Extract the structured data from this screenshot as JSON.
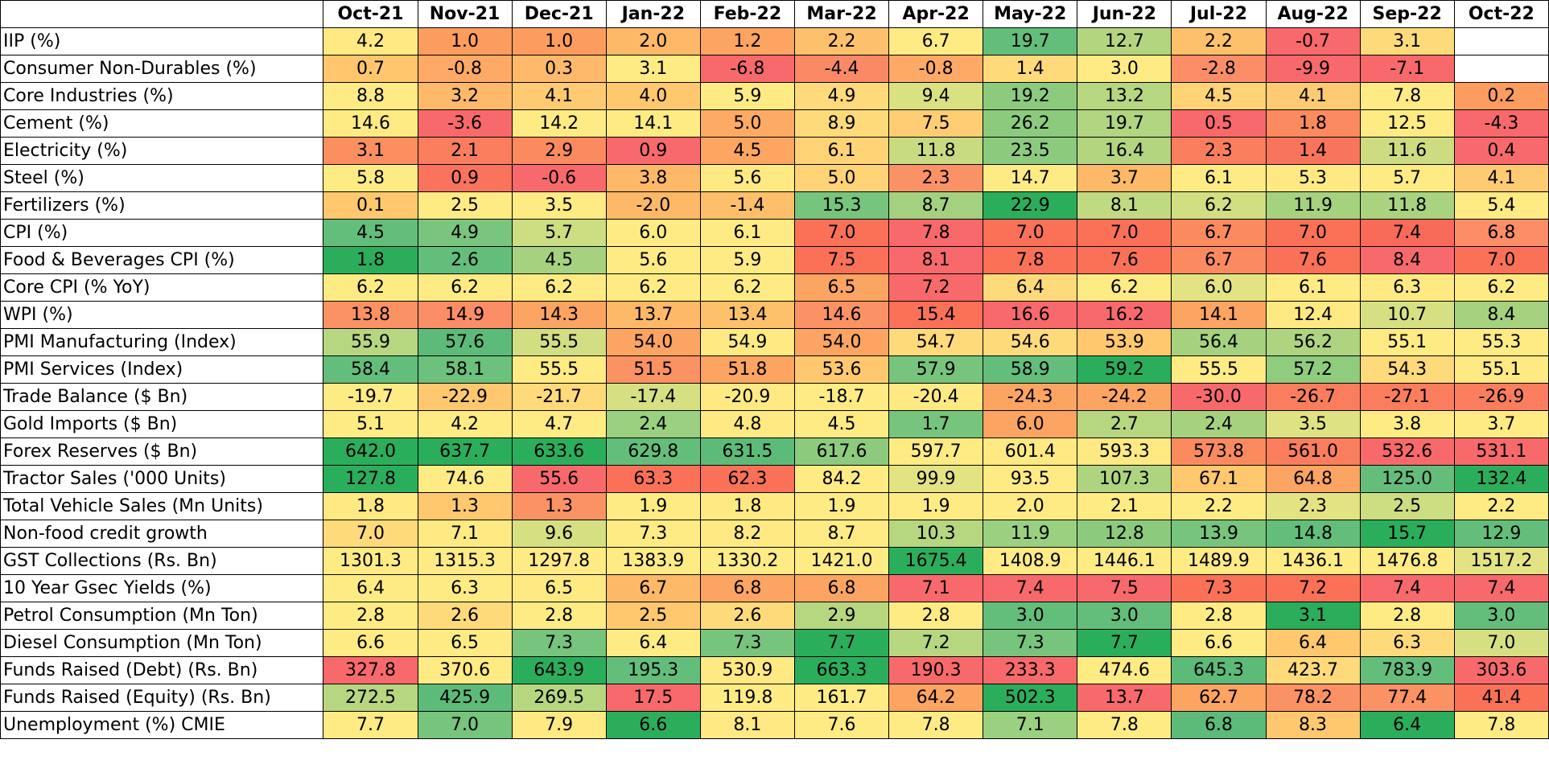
{
  "chart_data": {
    "type": "table",
    "title": "",
    "columns": [
      "Oct-21",
      "Nov-21",
      "Dec-21",
      "Jan-22",
      "Feb-22",
      "Mar-22",
      "Apr-22",
      "May-22",
      "Jun-22",
      "Jul-22",
      "Aug-22",
      "Sep-22",
      "Oct-22"
    ],
    "rows": [
      {
        "label": "IIP (%)",
        "values": [
          "4.2",
          "1.0",
          "1.0",
          "2.0",
          "1.2",
          "2.2",
          "6.7",
          "19.7",
          "12.7",
          "2.2",
          "-0.7",
          "3.1",
          ""
        ]
      },
      {
        "label": "Consumer Non-Durables (%)",
        "values": [
          "0.7",
          "-0.8",
          "0.3",
          "3.1",
          "-6.8",
          "-4.4",
          "-0.8",
          "1.4",
          "3.0",
          "-2.8",
          "-9.9",
          "-7.1",
          ""
        ]
      },
      {
        "label": "Core Industries (%)",
        "values": [
          "8.8",
          "3.2",
          "4.1",
          "4.0",
          "5.9",
          "4.9",
          "9.4",
          "19.2",
          "13.2",
          "4.5",
          "4.1",
          "7.8",
          "0.2"
        ]
      },
      {
        "label": "Cement (%)",
        "values": [
          "14.6",
          "-3.6",
          "14.2",
          "14.1",
          "5.0",
          "8.9",
          "7.5",
          "26.2",
          "19.7",
          "0.5",
          "1.8",
          "12.5",
          "-4.3"
        ]
      },
      {
        "label": "Electricity (%)",
        "values": [
          "3.1",
          "2.1",
          "2.9",
          "0.9",
          "4.5",
          "6.1",
          "11.8",
          "23.5",
          "16.4",
          "2.3",
          "1.4",
          "11.6",
          "0.4"
        ]
      },
      {
        "label": "Steel (%)",
        "values": [
          "5.8",
          "0.9",
          "-0.6",
          "3.8",
          "5.6",
          "5.0",
          "2.3",
          "14.7",
          "3.7",
          "6.1",
          "5.3",
          "5.7",
          "4.1"
        ]
      },
      {
        "label": "Fertilizers (%)",
        "values": [
          "0.1",
          "2.5",
          "3.5",
          "-2.0",
          "-1.4",
          "15.3",
          "8.7",
          "22.9",
          "8.1",
          "6.2",
          "11.9",
          "11.8",
          "5.4"
        ]
      },
      {
        "label": "CPI (%)",
        "values": [
          "4.5",
          "4.9",
          "5.7",
          "6.0",
          "6.1",
          "7.0",
          "7.8",
          "7.0",
          "7.0",
          "6.7",
          "7.0",
          "7.4",
          "6.8"
        ]
      },
      {
        "label": "Food & Beverages CPI (%)",
        "values": [
          "1.8",
          "2.6",
          "4.5",
          "5.6",
          "5.9",
          "7.5",
          "8.1",
          "7.8",
          "7.6",
          "6.7",
          "7.6",
          "8.4",
          "7.0"
        ]
      },
      {
        "label": "Core CPI (% YoY)",
        "values": [
          "6.2",
          "6.2",
          "6.2",
          "6.2",
          "6.2",
          "6.5",
          "7.2",
          "6.4",
          "6.2",
          "6.0",
          "6.1",
          "6.3",
          "6.2"
        ]
      },
      {
        "label": "WPI (%)",
        "values": [
          "13.8",
          "14.9",
          "14.3",
          "13.7",
          "13.4",
          "14.6",
          "15.4",
          "16.6",
          "16.2",
          "14.1",
          "12.4",
          "10.7",
          "8.4"
        ]
      },
      {
        "label": "PMI Manufacturing (Index)",
        "values": [
          "55.9",
          "57.6",
          "55.5",
          "54.0",
          "54.9",
          "54.0",
          "54.7",
          "54.6",
          "53.9",
          "56.4",
          "56.2",
          "55.1",
          "55.3"
        ]
      },
      {
        "label": "PMI Services (Index)",
        "values": [
          "58.4",
          "58.1",
          "55.5",
          "51.5",
          "51.8",
          "53.6",
          "57.9",
          "58.9",
          "59.2",
          "55.5",
          "57.2",
          "54.3",
          "55.1"
        ]
      },
      {
        "label": "Trade Balance ($ Bn)",
        "values": [
          "-19.7",
          "-22.9",
          "-21.7",
          "-17.4",
          "-20.9",
          "-18.7",
          "-20.4",
          "-24.3",
          "-24.2",
          "-30.0",
          "-26.7",
          "-27.1",
          "-26.9"
        ]
      },
      {
        "label": "Gold Imports ($ Bn)",
        "values": [
          "5.1",
          "4.2",
          "4.7",
          "2.4",
          "4.8",
          "4.5",
          "1.7",
          "6.0",
          "2.7",
          "2.4",
          "3.5",
          "3.8",
          "3.7"
        ]
      },
      {
        "label": "Forex Reserves ($ Bn)",
        "values": [
          "642.0",
          "637.7",
          "633.6",
          "629.8",
          "631.5",
          "617.6",
          "597.7",
          "601.4",
          "593.3",
          "573.8",
          "561.0",
          "532.6",
          "531.1"
        ]
      },
      {
        "label": "Tractor Sales ('000 Units)",
        "values": [
          "127.8",
          "74.6",
          "55.6",
          "63.3",
          "62.3",
          "84.2",
          "99.9",
          "93.5",
          "107.3",
          "67.1",
          "64.8",
          "125.0",
          "132.4"
        ]
      },
      {
        "label": "Total Vehicle Sales (Mn Units)",
        "values": [
          "1.8",
          "1.3",
          "1.3",
          "1.9",
          "1.8",
          "1.9",
          "1.9",
          "2.0",
          "2.1",
          "2.2",
          "2.3",
          "2.5",
          "2.2"
        ]
      },
      {
        "label": "Non-food credit growth",
        "values": [
          "7.0",
          "7.1",
          "9.6",
          "7.3",
          "8.2",
          "8.7",
          "10.3",
          "11.9",
          "12.8",
          "13.9",
          "14.8",
          "15.7",
          "12.9"
        ]
      },
      {
        "label": "GST Collections (Rs. Bn)",
        "values": [
          "1301.3",
          "1315.3",
          "1297.8",
          "1383.9",
          "1330.2",
          "1421.0",
          "1675.4",
          "1408.9",
          "1446.1",
          "1489.9",
          "1436.1",
          "1476.8",
          "1517.2"
        ]
      },
      {
        "label": "10 Year Gsec Yields (%)",
        "values": [
          "6.4",
          "6.3",
          "6.5",
          "6.7",
          "6.8",
          "6.8",
          "7.1",
          "7.4",
          "7.5",
          "7.3",
          "7.2",
          "7.4",
          "7.4"
        ]
      },
      {
        "label": "Petrol Consumption (Mn Ton)",
        "values": [
          "2.8",
          "2.6",
          "2.8",
          "2.5",
          "2.6",
          "2.9",
          "2.8",
          "3.0",
          "3.0",
          "2.8",
          "3.1",
          "2.8",
          "3.0"
        ]
      },
      {
        "label": "Diesel Consumption (Mn Ton)",
        "values": [
          "6.6",
          "6.5",
          "7.3",
          "6.4",
          "7.3",
          "7.7",
          "7.2",
          "7.3",
          "7.7",
          "6.6",
          "6.4",
          "6.3",
          "7.0"
        ]
      },
      {
        "label": "Funds Raised (Debt) (Rs. Bn)",
        "values": [
          "327.8",
          "370.6",
          "643.9",
          "195.3",
          "530.9",
          "663.3",
          "190.3",
          "233.3",
          "474.6",
          "645.3",
          "423.7",
          "783.9",
          "303.6"
        ]
      },
      {
        "label": "Funds Raised (Equity) (Rs. Bn)",
        "values": [
          "272.5",
          "425.9",
          "269.5",
          "17.5",
          "119.8",
          "161.7",
          "64.2",
          "502.3",
          "13.7",
          "62.7",
          "78.2",
          "77.4",
          "41.4"
        ]
      },
      {
        "label": "Unemployment (%) CMIE",
        "values": [
          "7.7",
          "7.0",
          "7.9",
          "6.6",
          "8.1",
          "7.6",
          "7.8",
          "7.1",
          "7.8",
          "6.8",
          "8.3",
          "6.4",
          "7.8"
        ]
      }
    ],
    "cell_colors": [
      [
        "#FFE983",
        "#FC9C5F",
        "#FC9C5F",
        "#FDB868",
        "#FCA461",
        "#FDC16B",
        "#FFEB84",
        "#63BE7B",
        "#B4D57F",
        "#FDC16B",
        "#F8696B",
        "#FFDA7B",
        "#FFFFFF"
      ],
      [
        "#FFC66E",
        "#FEA965",
        "#FFB96A",
        "#FFEB84",
        "#F8696B",
        "#FA8A65",
        "#FEA965",
        "#FFDA7B",
        "#FFEB84",
        "#FB8E67",
        "#F8696B",
        "#F8696B",
        "#FFFFFF"
      ],
      [
        "#FFEB84",
        "#FFB96A",
        "#FFCB72",
        "#FFC86F",
        "#FFEB84",
        "#FFDA7B",
        "#D9E181",
        "#8CCB7E",
        "#B7D680",
        "#FFD376",
        "#FFCB72",
        "#FFEB84",
        "#FC9C5F"
      ],
      [
        "#FFEB84",
        "#F8696B",
        "#FFEB84",
        "#FFEB84",
        "#FDAB64",
        "#FFDA7B",
        "#FFCE74",
        "#8CCB7E",
        "#B1D580",
        "#F8696B",
        "#FB8B5F",
        "#FFEB84",
        "#F8696B"
      ],
      [
        "#FB8F5F",
        "#FA7E5D",
        "#FB8A5F",
        "#F8696B",
        "#FCA661",
        "#FFD376",
        "#C9DB81",
        "#8CCB7E",
        "#B4D580",
        "#FA7E5D",
        "#F9745C",
        "#CDDC81",
        "#F8696B"
      ],
      [
        "#FFEB84",
        "#F9735D",
        "#F8696B",
        "#FDB868",
        "#FFE983",
        "#FFD376",
        "#FB9265",
        "#FFEB84",
        "#FDB868",
        "#FFEB84",
        "#FFE983",
        "#FFEB84",
        "#FFCB72"
      ],
      [
        "#FFC86F",
        "#FFEB84",
        "#FFEB84",
        "#FDB868",
        "#FDBF6C",
        "#77C47D",
        "#A4D17F",
        "#2BAE5C",
        "#C1D981",
        "#D1DE82",
        "#A6D27F",
        "#A9D37F",
        "#FFEB84"
      ],
      [
        "#63BE7B",
        "#7AC57D",
        "#CCDD82",
        "#FFEB84",
        "#FFEB84",
        "#FA7158",
        "#F8696B",
        "#FA7158",
        "#FA7158",
        "#FB8B5F",
        "#FA7158",
        "#F86B59",
        "#FB8E67"
      ],
      [
        "#2BAE5C",
        "#63BE7B",
        "#A6D27F",
        "#FFEB84",
        "#FFEB84",
        "#FA7158",
        "#F8696B",
        "#FA7158",
        "#FA7158",
        "#FB8B5F",
        "#FA7158",
        "#F8696B",
        "#FA7158"
      ],
      [
        "#FFEB84",
        "#FFEB84",
        "#FFEB84",
        "#FFEB84",
        "#FFEB84",
        "#FCA461",
        "#F8696B",
        "#FFDA7B",
        "#FFEB84",
        "#E3E383",
        "#FFEB84",
        "#FFE983",
        "#FFEB84"
      ],
      [
        "#FB9263",
        "#FB8E67",
        "#FCA461",
        "#FDB868",
        "#FDC16B",
        "#FB9263",
        "#FA7158",
        "#F8696B",
        "#F8696B",
        "#FCA461",
        "#FFE983",
        "#D6E082",
        "#A6D27F"
      ],
      [
        "#B7D680",
        "#5DBB7A",
        "#D1DE82",
        "#FCA461",
        "#FFE983",
        "#FCA461",
        "#FFDA7B",
        "#FFDA7B",
        "#FFC86F",
        "#A6D27F",
        "#AED480",
        "#FFEB84",
        "#FFEB84"
      ],
      [
        "#63BE7B",
        "#6CC17C",
        "#FFEB84",
        "#FB9263",
        "#FCA461",
        "#FFC86F",
        "#77C47D",
        "#63BE7B",
        "#2BAE5C",
        "#FFEB84",
        "#8FCC7E",
        "#FFDA7B",
        "#FFE983"
      ],
      [
        "#FFEB84",
        "#FFC86F",
        "#FFDA7B",
        "#D6E082",
        "#FFE983",
        "#FFEB84",
        "#FFE983",
        "#FCA461",
        "#FCA461",
        "#F8696B",
        "#FA7E5D",
        "#FA7E5D",
        "#FA7E5D"
      ],
      [
        "#FFEB84",
        "#FFEB84",
        "#FFEB84",
        "#9AD07F",
        "#FFE983",
        "#FFEB84",
        "#77C47D",
        "#FCA461",
        "#B7D680",
        "#A6D27F",
        "#DFE282",
        "#FFEB84",
        "#FFEB84"
      ],
      [
        "#2BAE5C",
        "#2BAE5C",
        "#2BAE5C",
        "#63BE7B",
        "#5DBB7A",
        "#8CCB7E",
        "#FFEB84",
        "#FFE983",
        "#FFE983",
        "#FB8B5F",
        "#FA7E5D",
        "#F8696B",
        "#F8696B"
      ],
      [
        "#2BAE5C",
        "#FFEB84",
        "#F8696B",
        "#FA7158",
        "#FA7158",
        "#FFEB84",
        "#E3E383",
        "#FFEB84",
        "#AED480",
        "#FFC86F",
        "#FCA461",
        "#63BE7B",
        "#2BAE5C"
      ],
      [
        "#FFE983",
        "#FFC86F",
        "#FB9263",
        "#FFEB84",
        "#FFE983",
        "#FFEB84",
        "#FFEB84",
        "#FFEB84",
        "#FFEB84",
        "#FFEB84",
        "#E3E383",
        "#CCDD82",
        "#FFEB84"
      ],
      [
        "#FFDA7B",
        "#FFE983",
        "#D6E082",
        "#FFEB84",
        "#FFE983",
        "#FFEB84",
        "#B7D680",
        "#9AD07F",
        "#8CCB7E",
        "#77C47D",
        "#63BE7B",
        "#2BAE5C",
        "#63BE7B"
      ],
      [
        "#FFEB84",
        "#FFEB84",
        "#FFEB84",
        "#FFEB84",
        "#FFEB84",
        "#FFEB84",
        "#2BAE5C",
        "#FFEB84",
        "#FFEB84",
        "#FFEB84",
        "#FFEB84",
        "#FFEB84",
        "#E3E383"
      ],
      [
        "#FFEB84",
        "#FFEB84",
        "#FFE983",
        "#FDB868",
        "#FCA461",
        "#FCA461",
        "#F8696B",
        "#F8696B",
        "#F8696B",
        "#FA7158",
        "#FA7158",
        "#F8696B",
        "#F8696B"
      ],
      [
        "#FFEB84",
        "#FFDA7B",
        "#FFEB84",
        "#FFC86F",
        "#FFDA7B",
        "#B7D680",
        "#FFEB84",
        "#63BE7B",
        "#63BE7B",
        "#FFEB84",
        "#2BAE5C",
        "#FFEB84",
        "#63BE7B"
      ],
      [
        "#FFEB84",
        "#FFEB84",
        "#77C47D",
        "#FFEB84",
        "#77C47D",
        "#2BAE5C",
        "#B7D680",
        "#77C47D",
        "#2BAE5C",
        "#FFEB84",
        "#FFC86F",
        "#FFDA7B",
        "#D6E082"
      ],
      [
        "#F8696B",
        "#FFEB84",
        "#2BAE5C",
        "#63BE7B",
        "#FFE983",
        "#2BAE5C",
        "#F8696B",
        "#F8696B",
        "#FFEB84",
        "#5DBB7A",
        "#FFDA7B",
        "#63BE7B",
        "#F8696B"
      ],
      [
        "#B7D680",
        "#5DBB7A",
        "#B7D680",
        "#F8696B",
        "#FFEB84",
        "#FFEB84",
        "#FCA461",
        "#2BAE5C",
        "#F8696B",
        "#FCA461",
        "#FB9263",
        "#FB9263",
        "#FA7158"
      ],
      [
        "#FFEB84",
        "#77C47D",
        "#FFE983",
        "#2BAE5C",
        "#FFE983",
        "#FFEB84",
        "#FFEB84",
        "#9AD07F",
        "#FFEB84",
        "#5DBB7A",
        "#FFC86F",
        "#2BAE5C",
        "#FFEB84"
      ]
    ]
  }
}
